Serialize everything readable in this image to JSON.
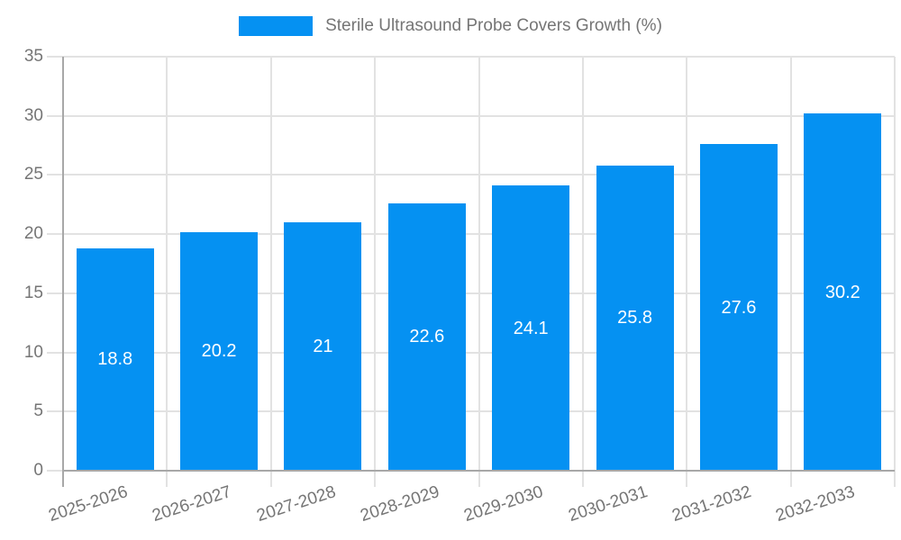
{
  "chart_data": {
    "type": "bar",
    "title": "Sterile Ultrasound Probe Covers Growth (%)",
    "categories": [
      "2025-2026",
      "2026-2027",
      "2027-2028",
      "2028-2029",
      "2029-2030",
      "2030-2031",
      "2031-2032",
      "2032-2033"
    ],
    "values": [
      18.8,
      20.2,
      21,
      22.6,
      24.1,
      25.8,
      27.6,
      30.2
    ],
    "value_labels": [
      "18.8",
      "20.2",
      "21",
      "22.6",
      "24.1",
      "25.8",
      "27.6",
      "30.2"
    ],
    "xlabel": "",
    "ylabel": "",
    "ylim": [
      0,
      35
    ],
    "ytick_step": 5,
    "ytick_labels": [
      "0",
      "5",
      "10",
      "15",
      "20",
      "25",
      "30",
      "35"
    ],
    "grid": true,
    "legend_position": "top",
    "colors": {
      "bar": "#0591f2",
      "grid": "#e2e2e2",
      "axis": "#a8a8a8",
      "text": "#757575",
      "bar_label": "#ffffff"
    }
  }
}
